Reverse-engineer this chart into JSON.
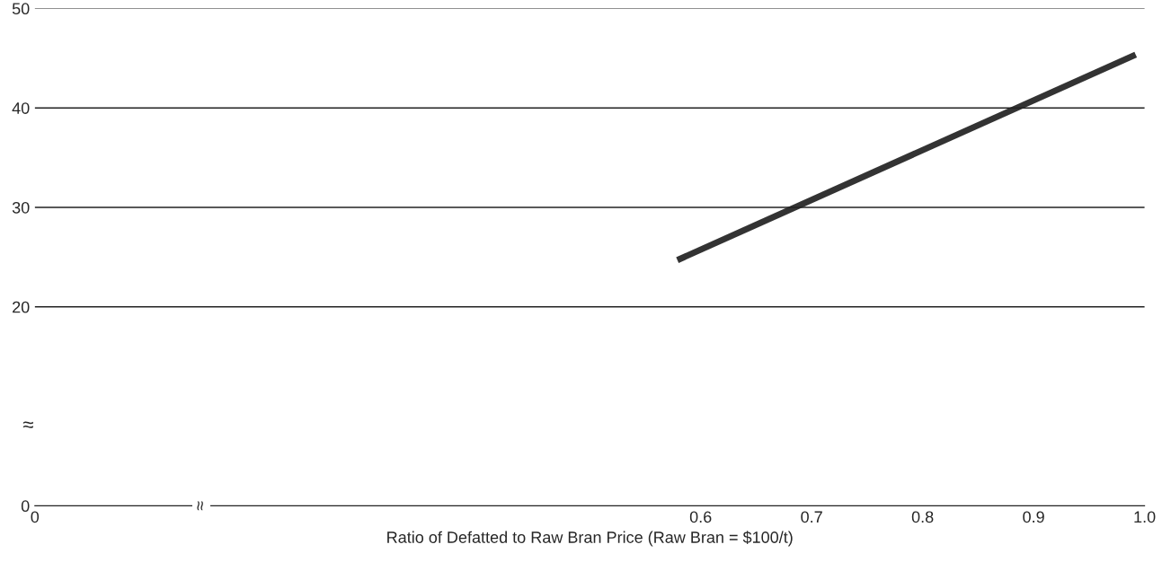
{
  "chart_data": {
    "type": "line",
    "xlabel": "Ratio of Defatted to Raw Bran Price (Raw Bran = $100/t)",
    "x": [
      0.579,
      0.992
    ],
    "series": [
      {
        "color": "#333333",
        "values": [
          24.7,
          45.35
        ]
      }
    ],
    "xlim": [
      0,
      1.0
    ],
    "xticks": [
      0,
      0.6,
      0.7,
      0.8,
      0.9,
      {
        "value": 1.0,
        "label": "1.0"
      }
    ],
    "ylim": [
      0,
      50
    ],
    "yticks": [
      0,
      20,
      30,
      40,
      50
    ],
    "grid": "y",
    "marker": "none",
    "line_style": "solid",
    "legend": false,
    "annotations": [
      "≈",
      "≈"
    ]
  }
}
